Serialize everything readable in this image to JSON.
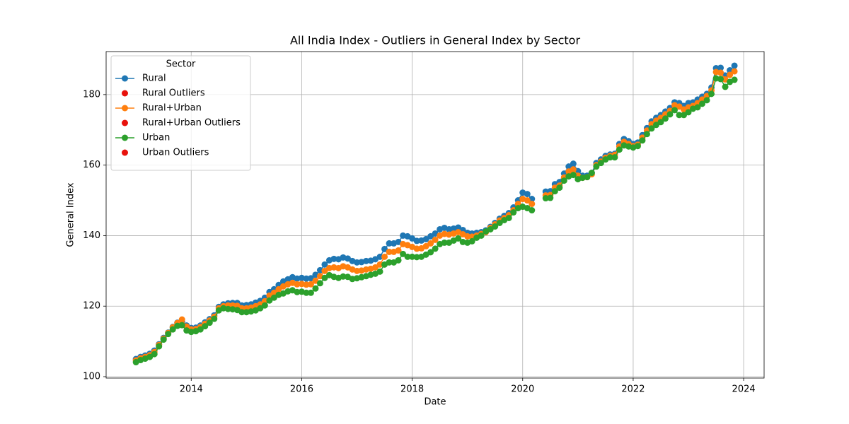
{
  "chart_data": {
    "type": "line",
    "title": "All India Index - Outliers in General Index by Sector",
    "xlabel": "Date",
    "ylabel": "General Index",
    "legend_title": "Sector",
    "legend_loc": "upper left",
    "grid": true,
    "xlim": [
      2012.46,
      2024.37
    ],
    "xticks": [
      2014,
      2016,
      2018,
      2020,
      2022,
      2024
    ],
    "ylim": [
      99.6,
      192.2
    ],
    "yticks": [
      100,
      120,
      140,
      160,
      180
    ],
    "x": [
      "2013-01",
      "2013-02",
      "2013-03",
      "2013-04",
      "2013-05",
      "2013-06",
      "2013-07",
      "2013-08",
      "2013-09",
      "2013-10",
      "2013-11",
      "2013-12",
      "2014-01",
      "2014-02",
      "2014-03",
      "2014-04",
      "2014-05",
      "2014-06",
      "2014-07",
      "2014-08",
      "2014-09",
      "2014-10",
      "2014-11",
      "2014-12",
      "2015-01",
      "2015-02",
      "2015-03",
      "2015-04",
      "2015-05",
      "2015-06",
      "2015-07",
      "2015-08",
      "2015-09",
      "2015-10",
      "2015-11",
      "2015-12",
      "2016-01",
      "2016-02",
      "2016-03",
      "2016-04",
      "2016-05",
      "2016-06",
      "2016-07",
      "2016-08",
      "2016-09",
      "2016-10",
      "2016-11",
      "2016-12",
      "2017-01",
      "2017-02",
      "2017-03",
      "2017-04",
      "2017-05",
      "2017-06",
      "2017-07",
      "2017-08",
      "2017-09",
      "2017-10",
      "2017-11",
      "2017-12",
      "2018-01",
      "2018-02",
      "2018-03",
      "2018-04",
      "2018-05",
      "2018-06",
      "2018-07",
      "2018-08",
      "2018-09",
      "2018-10",
      "2018-11",
      "2018-12",
      "2019-01",
      "2019-02",
      "2019-03",
      "2019-04",
      "2019-05",
      "2019-06",
      "2019-07",
      "2019-08",
      "2019-09",
      "2019-10",
      "2019-11",
      "2019-12",
      "2020-01",
      "2020-02",
      "2020-03",
      "2020-04",
      "2020-05",
      "2020-06",
      "2020-07",
      "2020-08",
      "2020-09",
      "2020-10",
      "2020-11",
      "2020-12",
      "2021-01",
      "2021-02",
      "2021-03",
      "2021-04",
      "2021-05",
      "2021-06",
      "2021-07",
      "2021-08",
      "2021-09",
      "2021-10",
      "2021-11",
      "2021-12",
      "2022-01",
      "2022-02",
      "2022-03",
      "2022-04",
      "2022-05",
      "2022-06",
      "2022-07",
      "2022-08",
      "2022-09",
      "2022-10",
      "2022-11",
      "2022-12",
      "2023-01",
      "2023-02",
      "2023-03",
      "2023-04",
      "2023-05",
      "2023-06",
      "2023-07",
      "2023-08",
      "2023-09",
      "2023-10",
      "2023-11"
    ],
    "series": [
      {
        "name": "Rural",
        "kind": "line",
        "color": "#1f77b4",
        "values": [
          105.0,
          105.6,
          106.0,
          106.5,
          107.4,
          109.2,
          111.0,
          112.5,
          114.1,
          115.3,
          115.6,
          114.5,
          113.8,
          113.9,
          114.5,
          115.4,
          116.3,
          117.4,
          119.8,
          120.5,
          120.8,
          120.9,
          120.9,
          120.2,
          120.3,
          120.5,
          121.0,
          121.5,
          122.4,
          124.0,
          124.8,
          126.0,
          127.0,
          127.6,
          128.2,
          127.8,
          128.0,
          127.8,
          127.9,
          128.9,
          130.2,
          131.8,
          133.0,
          133.4,
          133.3,
          133.8,
          133.5,
          132.8,
          132.4,
          132.5,
          132.8,
          132.9,
          133.3,
          134.0,
          136.2,
          137.8,
          137.8,
          138.2,
          140.0,
          139.8,
          139.2,
          138.5,
          138.6,
          139.0,
          139.8,
          140.6,
          141.8,
          142.2,
          141.8,
          142.0,
          142.3,
          141.6,
          140.8,
          140.6,
          140.8,
          141.0,
          141.5,
          142.5,
          143.6,
          144.8,
          145.6,
          146.4,
          148.0,
          150.0,
          152.2,
          151.8,
          150.4,
          null,
          null,
          152.5,
          152.6,
          154.6,
          155.2,
          157.6,
          159.6,
          160.4,
          158.3,
          157.0,
          157.0,
          157.8,
          160.6,
          161.6,
          162.6,
          163.0,
          163.2,
          166.0,
          167.4,
          166.8,
          166.0,
          166.4,
          168.5,
          170.5,
          172.4,
          173.4,
          174.2,
          175.2,
          176.2,
          177.8,
          177.6,
          176.8,
          177.6,
          177.8,
          178.6,
          179.4,
          180.2,
          182.0,
          187.5,
          187.6,
          185.4,
          186.9,
          188.2
        ]
      },
      {
        "name": "Rural Outliers",
        "kind": "scatter",
        "color": "#e8120c",
        "values": [
          null,
          null,
          null,
          null,
          null,
          null,
          null,
          null,
          null,
          null,
          null,
          null,
          null,
          null,
          null,
          null,
          null,
          null,
          null,
          null,
          null,
          null,
          null,
          null,
          null,
          null,
          null,
          null,
          null,
          null,
          null,
          null,
          null,
          null,
          null,
          null,
          null,
          null,
          null,
          null,
          null,
          null,
          null,
          null,
          null,
          null,
          null,
          null,
          null,
          null,
          null,
          null,
          null,
          null,
          null,
          null,
          null,
          null,
          null,
          null,
          null,
          null,
          null,
          null,
          null,
          null,
          null,
          null,
          null,
          null,
          null,
          null,
          null,
          null,
          null,
          null,
          null,
          null,
          null,
          null,
          null,
          null,
          null,
          null,
          null,
          null,
          null,
          null,
          null,
          null,
          null,
          null,
          null,
          null,
          null,
          null,
          null,
          null,
          null,
          null,
          null,
          null,
          null,
          null,
          null,
          null,
          null,
          null,
          null,
          null,
          null,
          null,
          null,
          null,
          null,
          null,
          null,
          null,
          null,
          null,
          null,
          null,
          null,
          null,
          null,
          null,
          null,
          null,
          null,
          null,
          null
        ]
      },
      {
        "name": "Rural+Urban",
        "kind": "line",
        "color": "#ff7f0e",
        "values": [
          104.6,
          105.2,
          105.6,
          106.1,
          107.0,
          109.0,
          110.8,
          112.4,
          114.0,
          115.2,
          116.2,
          114.2,
          113.4,
          113.5,
          114.1,
          115.0,
          115.9,
          117.0,
          119.4,
          120.0,
          120.2,
          120.2,
          120.1,
          119.4,
          119.4,
          119.6,
          120.0,
          120.5,
          121.4,
          123.0,
          123.8,
          124.8,
          125.6,
          126.2,
          126.6,
          126.2,
          126.3,
          126.1,
          126.2,
          127.2,
          128.5,
          130.0,
          130.8,
          131.0,
          130.8,
          131.3,
          131.0,
          130.4,
          130.0,
          130.1,
          130.4,
          130.6,
          131.0,
          131.8,
          134.0,
          135.4,
          135.4,
          135.8,
          137.6,
          137.3,
          136.8,
          136.3,
          136.4,
          137.0,
          137.8,
          138.8,
          140.0,
          140.5,
          140.3,
          140.6,
          141.0,
          140.4,
          139.8,
          139.7,
          140.0,
          140.5,
          141.0,
          142.2,
          143.2,
          144.3,
          145.0,
          145.8,
          147.2,
          149.0,
          150.4,
          150.0,
          149.0,
          null,
          null,
          151.4,
          151.5,
          153.6,
          154.2,
          156.5,
          158.2,
          158.8,
          157.0,
          156.4,
          156.6,
          157.4,
          160.0,
          161.0,
          162.1,
          162.6,
          162.9,
          165.3,
          166.6,
          166.0,
          165.4,
          165.8,
          167.8,
          169.8,
          171.6,
          172.6,
          173.4,
          174.4,
          175.4,
          177.0,
          176.6,
          175.8,
          176.4,
          176.8,
          177.6,
          178.6,
          179.6,
          181.2,
          186.4,
          186.2,
          184.3,
          185.6,
          186.6
        ]
      },
      {
        "name": "Rural+Urban Outliers",
        "kind": "scatter",
        "color": "#e8120c",
        "values": [
          null,
          null,
          null,
          null,
          null,
          null,
          null,
          null,
          null,
          null,
          null,
          null,
          null,
          null,
          null,
          null,
          null,
          null,
          null,
          null,
          null,
          null,
          null,
          null,
          null,
          null,
          null,
          null,
          null,
          null,
          null,
          null,
          null,
          null,
          null,
          null,
          null,
          null,
          null,
          null,
          null,
          null,
          null,
          null,
          null,
          null,
          null,
          null,
          null,
          null,
          null,
          null,
          null,
          null,
          null,
          null,
          null,
          null,
          null,
          null,
          null,
          null,
          null,
          null,
          null,
          null,
          null,
          null,
          null,
          null,
          null,
          null,
          null,
          null,
          null,
          null,
          null,
          null,
          null,
          null,
          null,
          null,
          null,
          null,
          null,
          null,
          null,
          null,
          null,
          null,
          null,
          null,
          null,
          null,
          null,
          null,
          null,
          null,
          null,
          null,
          null,
          null,
          null,
          null,
          null,
          null,
          null,
          null,
          null,
          null,
          null,
          null,
          null,
          null,
          null,
          null,
          null,
          null,
          null,
          null,
          null,
          null,
          null,
          null,
          null,
          null,
          null,
          null,
          null,
          null,
          null
        ]
      },
      {
        "name": "Urban",
        "kind": "line",
        "color": "#2ca02c",
        "values": [
          104.1,
          104.7,
          105.1,
          105.6,
          106.4,
          108.6,
          110.5,
          112.1,
          113.4,
          114.4,
          114.6,
          113.1,
          112.7,
          112.9,
          113.4,
          114.3,
          115.3,
          116.4,
          118.8,
          119.4,
          119.2,
          119.1,
          118.9,
          118.3,
          118.3,
          118.5,
          118.8,
          119.4,
          120.2,
          121.6,
          122.4,
          123.2,
          123.6,
          124.2,
          124.5,
          124.0,
          124.1,
          123.8,
          123.8,
          125.0,
          126.5,
          128.0,
          128.8,
          128.3,
          128.0,
          128.4,
          128.3,
          127.7,
          127.9,
          128.2,
          128.5,
          128.9,
          129.2,
          129.8,
          131.8,
          132.4,
          132.4,
          133.0,
          134.8,
          134.0,
          134.0,
          133.9,
          134.0,
          134.6,
          135.3,
          136.3,
          137.6,
          138.0,
          138.0,
          138.6,
          139.2,
          138.2,
          138.0,
          138.4,
          139.4,
          140.0,
          141.2,
          141.8,
          142.6,
          143.6,
          144.4,
          145.0,
          146.6,
          147.8,
          148.2,
          147.8,
          147.2,
          null,
          null,
          150.6,
          150.7,
          152.6,
          153.6,
          155.6,
          156.8,
          157.2,
          156.0,
          156.4,
          156.6,
          157.8,
          159.6,
          160.6,
          161.6,
          162.2,
          162.2,
          164.4,
          165.6,
          165.3,
          165.0,
          165.4,
          167.0,
          168.8,
          170.4,
          171.4,
          172.2,
          173.2,
          174.4,
          175.6,
          174.2,
          174.2,
          175.0,
          176.0,
          176.4,
          177.4,
          178.4,
          180.2,
          184.6,
          184.4,
          182.2,
          183.6,
          184.2
        ]
      },
      {
        "name": "Urban Outliers",
        "kind": "scatter",
        "color": "#e8120c",
        "values": [
          null,
          null,
          null,
          null,
          null,
          null,
          null,
          null,
          null,
          null,
          null,
          null,
          null,
          null,
          null,
          null,
          null,
          null,
          null,
          null,
          null,
          null,
          null,
          null,
          null,
          null,
          null,
          null,
          null,
          null,
          null,
          null,
          null,
          null,
          null,
          null,
          null,
          null,
          null,
          null,
          null,
          null,
          null,
          null,
          null,
          null,
          null,
          null,
          null,
          null,
          null,
          null,
          null,
          null,
          null,
          null,
          null,
          null,
          null,
          null,
          null,
          null,
          null,
          null,
          null,
          null,
          null,
          null,
          null,
          null,
          null,
          null,
          null,
          null,
          null,
          null,
          null,
          null,
          null,
          null,
          null,
          null,
          null,
          null,
          null,
          null,
          null,
          null,
          null,
          null,
          null,
          null,
          null,
          null,
          null,
          null,
          null,
          null,
          null,
          null,
          null,
          null,
          null,
          null,
          null,
          null,
          null,
          null,
          null,
          null,
          null,
          null,
          null,
          null,
          null,
          null,
          null,
          null,
          null,
          null,
          null,
          null,
          null,
          null,
          null,
          null,
          null,
          null,
          null,
          null,
          null
        ]
      }
    ]
  }
}
